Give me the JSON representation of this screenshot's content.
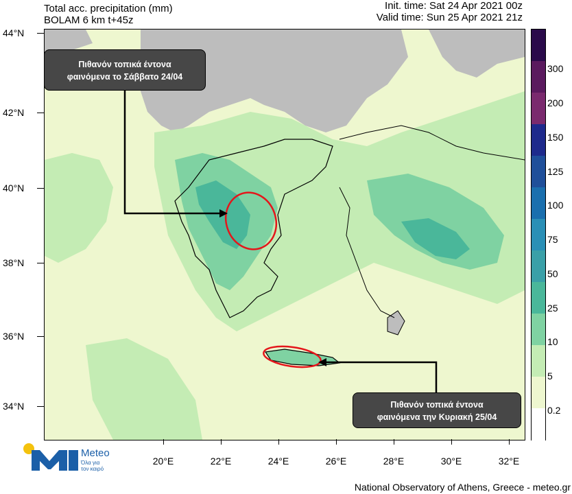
{
  "header": {
    "title_line1": "Total acc. precipitation (mm)",
    "title_line2": "BOLAM 6 km t+45z",
    "init_time": "Init. time: Sat 24 Apr 2021 00z",
    "valid_time": "Valid time: Sun 25 Apr 2021 21z"
  },
  "axes": {
    "lat_labels": [
      "44°N",
      "42°N",
      "40°N",
      "38°N",
      "36°N",
      "34°N"
    ],
    "lon_labels": [
      "20°E",
      "22°E",
      "24°E",
      "26°E",
      "28°E",
      "30°E",
      "32°E"
    ]
  },
  "colorbar": {
    "labels": [
      "300",
      "200",
      "150",
      "125",
      "100",
      "75",
      "50",
      "25",
      "10",
      "5",
      "0.2"
    ],
    "colors": [
      "#2a0a4a",
      "#5a1a5e",
      "#7a2a6e",
      "#1e2a8c",
      "#1f4f9a",
      "#1a6fae",
      "#2a8fb6",
      "#3aa0a8",
      "#4ab79a",
      "#7fd2a2",
      "#c4ecb4",
      "#eef7cf",
      "#ffffff"
    ]
  },
  "callouts": {
    "saturday": {
      "line1": "Πιθανόν τοπικά έντονα",
      "line2": "φαινόμενα  το Σάββατο 24/04"
    },
    "sunday": {
      "line1": "Πιθανόν τοπικά έντονα",
      "line2": "φαινόμενα την Κυριακή 25/04"
    }
  },
  "logo": {
    "brand": "Meteo",
    "tagline1": "Όλα για",
    "tagline2": "τον καιρό",
    "colors": {
      "blue": "#1b5fa8",
      "yellow": "#f4c20d"
    }
  },
  "footer": "National Observatory of Athens, Greece - meteo.gr",
  "map_colors": {
    "land_no_data": "#bdbdbd",
    "light": "#eef7cf",
    "green_light": "#c4ecb4",
    "green_mid": "#7fd2a2",
    "green_dark": "#4ab79a",
    "ellipse": "#e4161b",
    "arrow": "#000000"
  }
}
